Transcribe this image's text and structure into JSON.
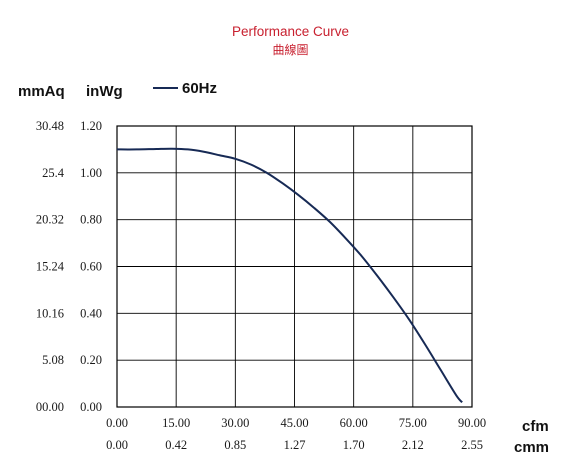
{
  "header": {
    "title": "Performance Curve",
    "subtitle": "曲線圖"
  },
  "colors": {
    "title": "#c8202f",
    "curve": "#172a55",
    "grid": "#000000",
    "text": "#1a1a1a"
  },
  "chart_data": {
    "type": "line",
    "title": "Performance Curve",
    "subtitle": "曲線圖",
    "legend_position": "top",
    "grid": true,
    "y_units": {
      "left": "mmAq",
      "right": "inWg"
    },
    "x_units": {
      "primary": "cfm",
      "secondary": "cmm"
    },
    "xlim": [
      0,
      90
    ],
    "ylim": [
      0,
      1.2
    ],
    "x_ticks": [
      0,
      15,
      30,
      45,
      60,
      75,
      90
    ],
    "x_tick_labels": [
      "0.00",
      "15.00",
      "30.00",
      "45.00",
      "60.00",
      "75.00",
      "90.00"
    ],
    "x2_tick_labels": [
      "0.00",
      "0.42",
      "0.85",
      "1.27",
      "1.70",
      "2.12",
      "2.55"
    ],
    "y_ticks": [
      0,
      0.2,
      0.4,
      0.6,
      0.8,
      1.0,
      1.2
    ],
    "y_tick_labels": [
      "0.00",
      "0.20",
      "0.40",
      "0.60",
      "0.80",
      "1.00",
      "1.20"
    ],
    "y2_tick_labels": [
      "00.00",
      "5.08",
      "10.16",
      "15.24",
      "20.32",
      "25.4",
      "30.48"
    ],
    "series": [
      {
        "name": "60Hz",
        "x": [
          0,
          5,
          10,
          14,
          18,
          22,
          26,
          30,
          34,
          38,
          42,
          46,
          50,
          54,
          58,
          62,
          66,
          70,
          74,
          78,
          82,
          86,
          87.5
        ],
        "y": [
          1.1,
          1.1,
          1.102,
          1.103,
          1.1,
          1.09,
          1.075,
          1.06,
          1.035,
          1.0,
          0.955,
          0.905,
          0.85,
          0.79,
          0.72,
          0.645,
          0.56,
          0.47,
          0.375,
          0.27,
          0.16,
          0.05,
          0.02
        ]
      }
    ]
  }
}
